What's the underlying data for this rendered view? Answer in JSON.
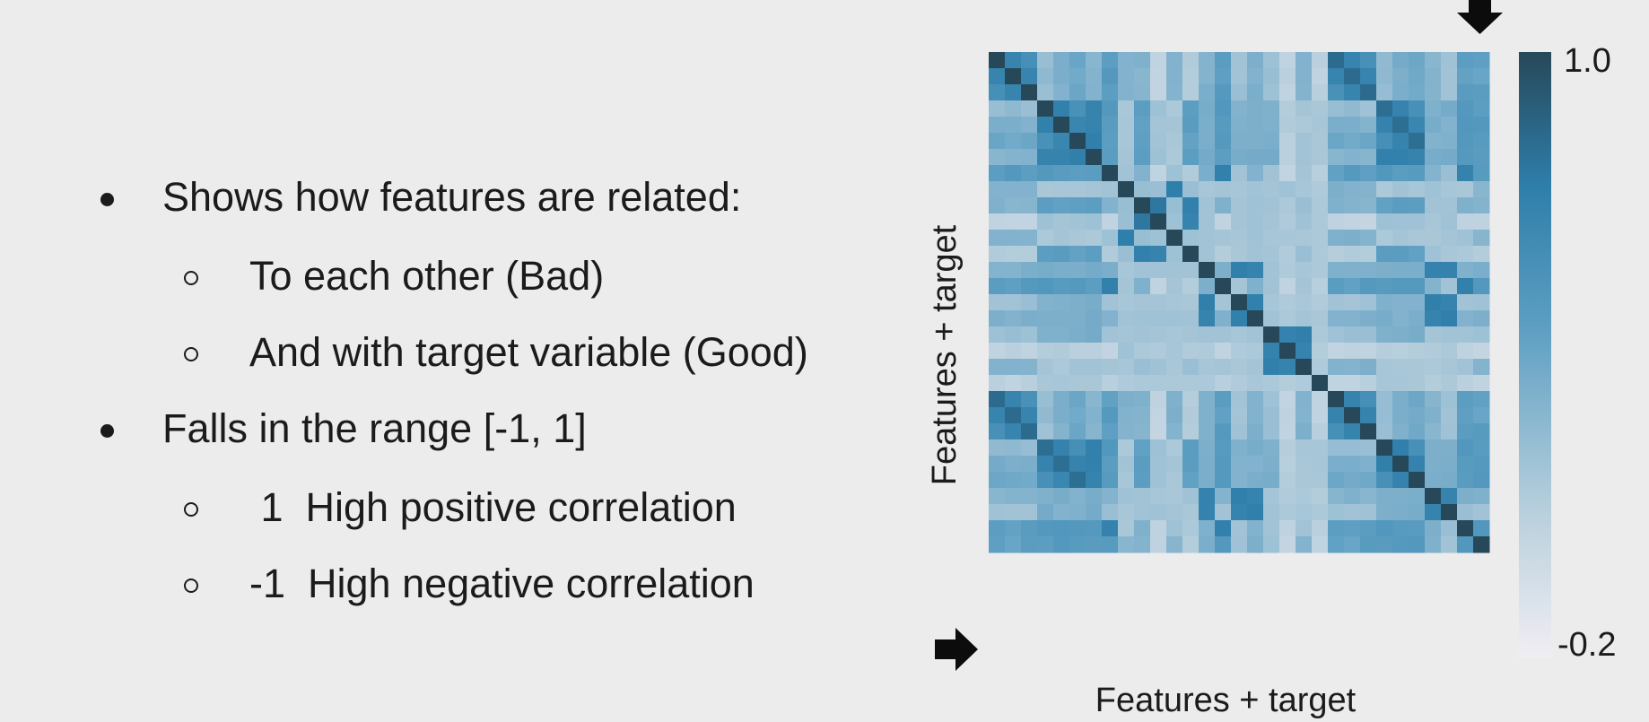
{
  "bullets": [
    {
      "text": "Shows how features are related:",
      "sub": [
        "To each other (Bad)",
        "And with target variable (Good)"
      ]
    },
    {
      "text": "Falls in the range [-1, 1]",
      "sub": [
        " 1  High positive correlation",
        "-1  High negative correlation"
      ]
    }
  ],
  "chart_data": {
    "type": "heatmap",
    "xlabel": "Features + target",
    "ylabel": "Features + target",
    "n": 31,
    "colorbar": {
      "min": -0.2,
      "max": 1.0,
      "ticks": [
        "1.0",
        "-0.2"
      ],
      "colors": [
        "#f1eef3",
        "#b6cedc",
        "#5c9ec2",
        "#2e7eaa",
        "#274859"
      ]
    },
    "target_index": 30,
    "arrow_markers": [
      "top-right-column",
      "bottom-left-row"
    ],
    "groups": [
      0,
      0,
      0,
      1,
      1,
      1,
      1,
      2,
      3,
      4,
      4,
      3,
      4,
      5,
      2,
      5,
      5,
      6,
      6,
      6,
      7,
      0,
      0,
      0,
      1,
      1,
      1,
      5,
      5,
      2,
      8
    ],
    "values": [
      [
        1.0,
        0.68,
        0.59,
        0.22,
        0.34,
        0.41,
        0.28,
        0.46,
        0.31,
        0.32,
        0.05,
        0.31,
        0.12,
        0.3,
        0.47,
        0.18,
        0.33,
        0.2,
        0.05,
        0.31,
        0.08,
        0.83,
        0.68,
        0.58,
        0.25,
        0.36,
        0.39,
        0.28,
        0.19,
        0.46,
        0.45
      ],
      [
        0.68,
        1.0,
        0.68,
        0.26,
        0.34,
        0.37,
        0.3,
        0.51,
        0.31,
        0.28,
        0.04,
        0.31,
        0.11,
        0.3,
        0.45,
        0.18,
        0.31,
        0.22,
        0.08,
        0.31,
        0.05,
        0.68,
        0.83,
        0.68,
        0.26,
        0.33,
        0.38,
        0.3,
        0.18,
        0.43,
        0.41
      ],
      [
        0.59,
        0.68,
        1.0,
        0.21,
        0.31,
        0.4,
        0.31,
        0.46,
        0.31,
        0.29,
        0.04,
        0.3,
        0.11,
        0.34,
        0.5,
        0.21,
        0.34,
        0.2,
        0.05,
        0.3,
        0.09,
        0.57,
        0.68,
        0.83,
        0.23,
        0.34,
        0.37,
        0.3,
        0.18,
        0.48,
        0.47
      ],
      [
        0.22,
        0.26,
        0.21,
        1.0,
        0.71,
        0.57,
        0.69,
        0.51,
        0.15,
        0.46,
        0.2,
        0.14,
        0.46,
        0.35,
        0.52,
        0.31,
        0.33,
        0.32,
        0.11,
        0.17,
        0.15,
        0.22,
        0.25,
        0.19,
        0.81,
        0.69,
        0.58,
        0.32,
        0.36,
        0.51,
        0.46
      ],
      [
        0.34,
        0.34,
        0.31,
        0.71,
        1.0,
        0.67,
        0.69,
        0.48,
        0.16,
        0.44,
        0.17,
        0.17,
        0.48,
        0.34,
        0.49,
        0.32,
        0.33,
        0.32,
        0.12,
        0.14,
        0.16,
        0.34,
        0.34,
        0.3,
        0.7,
        0.81,
        0.67,
        0.35,
        0.31,
        0.52,
        0.51
      ],
      [
        0.41,
        0.37,
        0.4,
        0.57,
        0.67,
        1.0,
        0.72,
        0.46,
        0.16,
        0.45,
        0.18,
        0.15,
        0.43,
        0.34,
        0.5,
        0.33,
        0.33,
        0.34,
        0.08,
        0.18,
        0.15,
        0.4,
        0.37,
        0.4,
        0.59,
        0.69,
        0.81,
        0.31,
        0.32,
        0.51,
        0.49
      ],
      [
        0.28,
        0.3,
        0.31,
        0.69,
        0.69,
        0.72,
        1.0,
        0.47,
        0.17,
        0.46,
        0.2,
        0.14,
        0.46,
        0.36,
        0.46,
        0.35,
        0.36,
        0.36,
        0.08,
        0.18,
        0.15,
        0.28,
        0.31,
        0.29,
        0.71,
        0.71,
        0.69,
        0.35,
        0.36,
        0.5,
        0.48
      ],
      [
        0.46,
        0.51,
        0.46,
        0.51,
        0.48,
        0.46,
        0.47,
        1.0,
        0.18,
        0.31,
        0.05,
        0.2,
        0.12,
        0.34,
        0.71,
        0.18,
        0.31,
        0.18,
        0.04,
        0.17,
        0.09,
        0.44,
        0.5,
        0.45,
        0.52,
        0.47,
        0.49,
        0.3,
        0.21,
        0.7,
        0.49
      ],
      [
        0.31,
        0.31,
        0.31,
        0.15,
        0.16,
        0.16,
        0.17,
        0.18,
        1.0,
        0.22,
        0.21,
        0.73,
        0.21,
        0.16,
        0.17,
        0.16,
        0.18,
        0.17,
        0.19,
        0.16,
        0.13,
        0.33,
        0.31,
        0.3,
        0.14,
        0.18,
        0.16,
        0.19,
        0.16,
        0.15,
        0.28
      ],
      [
        0.32,
        0.28,
        0.29,
        0.46,
        0.44,
        0.45,
        0.46,
        0.31,
        0.22,
        1.0,
        0.77,
        0.22,
        0.71,
        0.18,
        0.32,
        0.17,
        0.19,
        0.18,
        0.14,
        0.21,
        0.14,
        0.32,
        0.3,
        0.29,
        0.44,
        0.47,
        0.46,
        0.18,
        0.18,
        0.32,
        0.3
      ],
      [
        0.05,
        0.04,
        0.04,
        0.2,
        0.17,
        0.18,
        0.2,
        0.05,
        0.21,
        0.77,
        1.0,
        0.2,
        0.69,
        0.18,
        0.05,
        0.17,
        0.19,
        0.17,
        0.13,
        0.19,
        0.14,
        0.06,
        0.04,
        0.03,
        0.2,
        0.19,
        0.19,
        0.16,
        0.19,
        0.06,
        0.06
      ],
      [
        0.31,
        0.31,
        0.3,
        0.14,
        0.17,
        0.15,
        0.14,
        0.2,
        0.73,
        0.22,
        0.2,
        1.0,
        0.2,
        0.18,
        0.17,
        0.16,
        0.19,
        0.16,
        0.16,
        0.15,
        0.14,
        0.32,
        0.33,
        0.3,
        0.14,
        0.17,
        0.15,
        0.15,
        0.17,
        0.19,
        0.29
      ],
      [
        0.12,
        0.11,
        0.11,
        0.46,
        0.48,
        0.43,
        0.46,
        0.12,
        0.21,
        0.71,
        0.69,
        0.2,
        1.0,
        0.18,
        0.11,
        0.15,
        0.18,
        0.17,
        0.12,
        0.21,
        0.14,
        0.1,
        0.12,
        0.11,
        0.47,
        0.47,
        0.44,
        0.19,
        0.15,
        0.14,
        0.11
      ],
      [
        0.3,
        0.3,
        0.34,
        0.35,
        0.34,
        0.34,
        0.36,
        0.34,
        0.16,
        0.18,
        0.18,
        0.18,
        0.18,
        1.0,
        0.33,
        0.72,
        0.69,
        0.18,
        0.13,
        0.16,
        0.14,
        0.32,
        0.32,
        0.32,
        0.33,
        0.34,
        0.34,
        0.7,
        0.7,
        0.32,
        0.34
      ],
      [
        0.47,
        0.45,
        0.5,
        0.52,
        0.49,
        0.5,
        0.46,
        0.71,
        0.17,
        0.32,
        0.05,
        0.17,
        0.11,
        0.33,
        1.0,
        0.17,
        0.32,
        0.18,
        0.05,
        0.17,
        0.09,
        0.47,
        0.44,
        0.5,
        0.49,
        0.5,
        0.5,
        0.3,
        0.18,
        0.71,
        0.51
      ],
      [
        0.18,
        0.18,
        0.21,
        0.31,
        0.32,
        0.33,
        0.35,
        0.18,
        0.16,
        0.17,
        0.17,
        0.16,
        0.15,
        0.72,
        0.17,
        1.0,
        0.71,
        0.16,
        0.13,
        0.15,
        0.12,
        0.18,
        0.17,
        0.19,
        0.32,
        0.31,
        0.31,
        0.72,
        0.69,
        0.18,
        0.19
      ],
      [
        0.33,
        0.31,
        0.34,
        0.33,
        0.33,
        0.33,
        0.36,
        0.31,
        0.18,
        0.19,
        0.19,
        0.19,
        0.18,
        0.69,
        0.32,
        0.71,
        1.0,
        0.18,
        0.14,
        0.17,
        0.15,
        0.31,
        0.31,
        0.33,
        0.35,
        0.31,
        0.34,
        0.69,
        0.72,
        0.31,
        0.33
      ],
      [
        0.2,
        0.22,
        0.2,
        0.32,
        0.32,
        0.34,
        0.36,
        0.18,
        0.17,
        0.18,
        0.17,
        0.16,
        0.17,
        0.18,
        0.18,
        0.16,
        0.18,
        1.0,
        0.7,
        0.72,
        0.14,
        0.19,
        0.21,
        0.21,
        0.32,
        0.33,
        0.35,
        0.17,
        0.18,
        0.18,
        0.2
      ],
      [
        0.05,
        0.08,
        0.05,
        0.11,
        0.12,
        0.08,
        0.08,
        0.04,
        0.19,
        0.14,
        0.13,
        0.16,
        0.12,
        0.13,
        0.05,
        0.13,
        0.14,
        0.7,
        1.0,
        0.69,
        0.11,
        0.04,
        0.06,
        0.05,
        0.1,
        0.09,
        0.11,
        0.12,
        0.14,
        0.06,
        0.03
      ],
      [
        0.31,
        0.31,
        0.3,
        0.17,
        0.14,
        0.18,
        0.18,
        0.17,
        0.16,
        0.21,
        0.19,
        0.15,
        0.21,
        0.16,
        0.17,
        0.15,
        0.17,
        0.72,
        0.69,
        1.0,
        0.13,
        0.31,
        0.3,
        0.33,
        0.16,
        0.15,
        0.15,
        0.14,
        0.16,
        0.18,
        0.3
      ],
      [
        0.08,
        0.05,
        0.09,
        0.15,
        0.16,
        0.15,
        0.15,
        0.09,
        0.13,
        0.14,
        0.14,
        0.14,
        0.14,
        0.14,
        0.09,
        0.12,
        0.15,
        0.14,
        0.11,
        0.13,
        1.0,
        0.05,
        0.05,
        0.09,
        0.16,
        0.16,
        0.15,
        0.11,
        0.14,
        0.08,
        0.05
      ],
      [
        0.83,
        0.68,
        0.57,
        0.22,
        0.34,
        0.4,
        0.28,
        0.44,
        0.33,
        0.32,
        0.06,
        0.32,
        0.1,
        0.32,
        0.47,
        0.18,
        0.31,
        0.19,
        0.04,
        0.31,
        0.05,
        1.0,
        0.69,
        0.59,
        0.23,
        0.34,
        0.39,
        0.29,
        0.2,
        0.46,
        0.44
      ],
      [
        0.68,
        0.83,
        0.68,
        0.25,
        0.34,
        0.37,
        0.31,
        0.5,
        0.31,
        0.3,
        0.04,
        0.33,
        0.12,
        0.32,
        0.44,
        0.17,
        0.31,
        0.21,
        0.06,
        0.3,
        0.05,
        0.69,
        1.0,
        0.69,
        0.23,
        0.34,
        0.36,
        0.32,
        0.18,
        0.45,
        0.41
      ],
      [
        0.58,
        0.68,
        0.83,
        0.19,
        0.3,
        0.4,
        0.29,
        0.45,
        0.3,
        0.29,
        0.03,
        0.3,
        0.11,
        0.32,
        0.5,
        0.19,
        0.33,
        0.21,
        0.05,
        0.33,
        0.09,
        0.59,
        0.69,
        1.0,
        0.21,
        0.32,
        0.38,
        0.28,
        0.19,
        0.47,
        0.49
      ],
      [
        0.25,
        0.26,
        0.23,
        0.81,
        0.7,
        0.59,
        0.71,
        0.52,
        0.14,
        0.44,
        0.2,
        0.14,
        0.47,
        0.33,
        0.49,
        0.32,
        0.35,
        0.32,
        0.1,
        0.16,
        0.16,
        0.23,
        0.23,
        0.21,
        1.0,
        0.72,
        0.58,
        0.33,
        0.33,
        0.52,
        0.48
      ],
      [
        0.36,
        0.33,
        0.34,
        0.69,
        0.81,
        0.69,
        0.71,
        0.47,
        0.18,
        0.47,
        0.19,
        0.17,
        0.47,
        0.34,
        0.5,
        0.31,
        0.31,
        0.33,
        0.09,
        0.15,
        0.16,
        0.34,
        0.34,
        0.32,
        0.72,
        1.0,
        0.7,
        0.33,
        0.34,
        0.49,
        0.5
      ],
      [
        0.39,
        0.38,
        0.37,
        0.58,
        0.67,
        0.81,
        0.69,
        0.49,
        0.16,
        0.46,
        0.19,
        0.15,
        0.44,
        0.34,
        0.5,
        0.31,
        0.34,
        0.35,
        0.11,
        0.15,
        0.15,
        0.39,
        0.36,
        0.38,
        0.58,
        0.7,
        1.0,
        0.34,
        0.35,
        0.48,
        0.51
      ],
      [
        0.28,
        0.3,
        0.3,
        0.32,
        0.35,
        0.31,
        0.35,
        0.3,
        0.19,
        0.18,
        0.16,
        0.15,
        0.19,
        0.7,
        0.3,
        0.72,
        0.69,
        0.17,
        0.12,
        0.14,
        0.11,
        0.29,
        0.32,
        0.28,
        0.33,
        0.33,
        0.34,
        1.0,
        0.69,
        0.33,
        0.32
      ],
      [
        0.19,
        0.18,
        0.18,
        0.36,
        0.31,
        0.32,
        0.36,
        0.21,
        0.16,
        0.18,
        0.19,
        0.17,
        0.15,
        0.7,
        0.18,
        0.69,
        0.72,
        0.18,
        0.14,
        0.16,
        0.14,
        0.2,
        0.18,
        0.19,
        0.33,
        0.34,
        0.35,
        0.69,
        1.0,
        0.21,
        0.18
      ],
      [
        0.46,
        0.43,
        0.48,
        0.51,
        0.52,
        0.51,
        0.5,
        0.7,
        0.15,
        0.32,
        0.06,
        0.19,
        0.14,
        0.32,
        0.71,
        0.18,
        0.31,
        0.18,
        0.06,
        0.18,
        0.08,
        0.46,
        0.45,
        0.47,
        0.52,
        0.49,
        0.48,
        0.33,
        0.21,
        1.0,
        0.52
      ],
      [
        0.45,
        0.41,
        0.47,
        0.46,
        0.51,
        0.49,
        0.48,
        0.49,
        0.28,
        0.3,
        0.06,
        0.29,
        0.11,
        0.34,
        0.51,
        0.19,
        0.33,
        0.2,
        0.03,
        0.3,
        0.05,
        0.44,
        0.41,
        0.49,
        0.48,
        0.5,
        0.51,
        0.32,
        0.18,
        0.52,
        1.0
      ]
    ]
  }
}
